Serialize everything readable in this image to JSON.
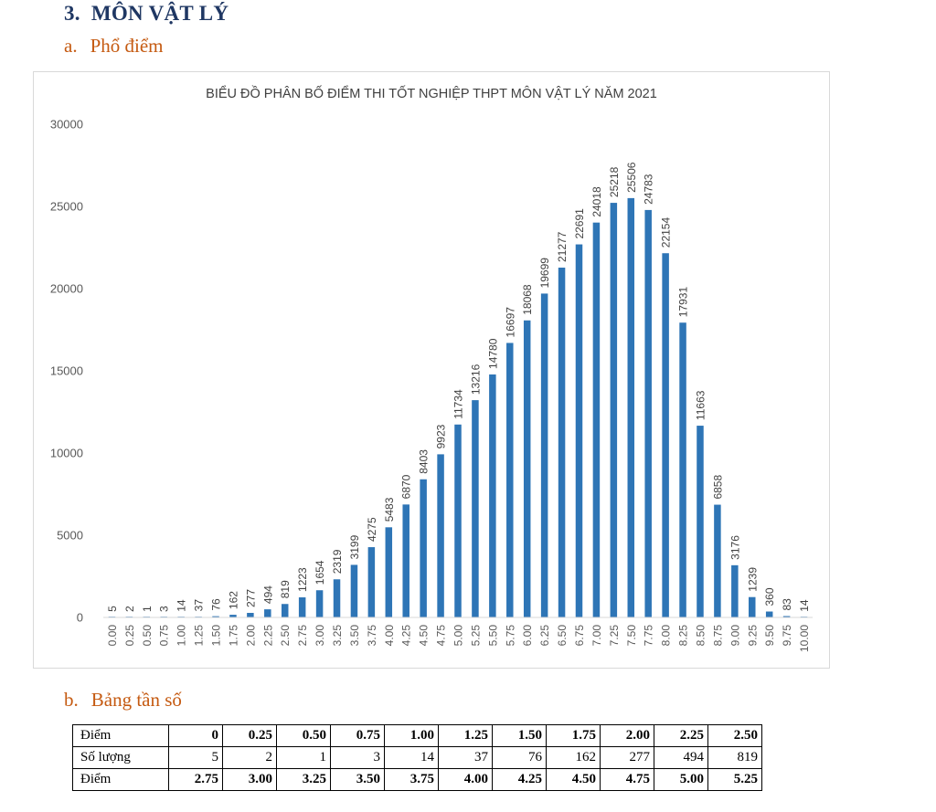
{
  "section": {
    "number": "3.",
    "title": "MÔN VẬT LÝ"
  },
  "subsection_a": {
    "letter": "a.",
    "title": "Phổ điểm"
  },
  "subsection_b": {
    "letter": "b.",
    "title": "Bảng tần số"
  },
  "chart_data": {
    "type": "bar",
    "title": "BIỂU ĐỒ PHÂN BỐ ĐIỂM THI TỐT NGHIỆP THPT MÔN VẬT LÝ NĂM 2021",
    "categories": [
      "0.00",
      "0.25",
      "0.50",
      "0.75",
      "1.00",
      "1.25",
      "1.50",
      "1.75",
      "2.00",
      "2.25",
      "2.50",
      "2.75",
      "3.00",
      "3.25",
      "3.50",
      "3.75",
      "4.00",
      "4.25",
      "4.50",
      "4.75",
      "5.00",
      "5.25",
      "5.50",
      "5.75",
      "6.00",
      "6.25",
      "6.50",
      "6.75",
      "7.00",
      "7.25",
      "7.50",
      "7.75",
      "8.00",
      "8.25",
      "8.50",
      "8.75",
      "9.00",
      "9.25",
      "9.50",
      "9.75",
      "10.00"
    ],
    "values": [
      5,
      2,
      1,
      3,
      14,
      37,
      76,
      162,
      277,
      494,
      819,
      1223,
      1654,
      2319,
      3199,
      4275,
      5483,
      6870,
      8403,
      9923,
      11734,
      13216,
      14780,
      16697,
      18068,
      19699,
      21277,
      22691,
      24018,
      25218,
      25506,
      24783,
      22154,
      17931,
      11663,
      6858,
      3176,
      1239,
      360,
      83,
      14
    ],
    "y_ticks": [
      "0",
      "5000",
      "10000",
      "15000",
      "20000",
      "25000",
      "30000"
    ],
    "ylim": [
      0,
      30000
    ],
    "grid": false,
    "bar_color": "#2e75b6"
  },
  "table": {
    "rows": [
      {
        "label": "Điểm",
        "bold": true,
        "values": [
          "0",
          "0.25",
          "0.50",
          "0.75",
          "1.00",
          "1.25",
          "1.50",
          "1.75",
          "2.00",
          "2.25",
          "2.50"
        ]
      },
      {
        "label": "Số lượng",
        "bold": false,
        "values": [
          "5",
          "2",
          "1",
          "3",
          "14",
          "37",
          "76",
          "162",
          "277",
          "494",
          "819"
        ]
      },
      {
        "label": "Điểm",
        "bold": true,
        "values": [
          "2.75",
          "3.00",
          "3.25",
          "3.50",
          "3.75",
          "4.00",
          "4.25",
          "4.50",
          "4.75",
          "5.00",
          "5.25"
        ]
      }
    ]
  }
}
